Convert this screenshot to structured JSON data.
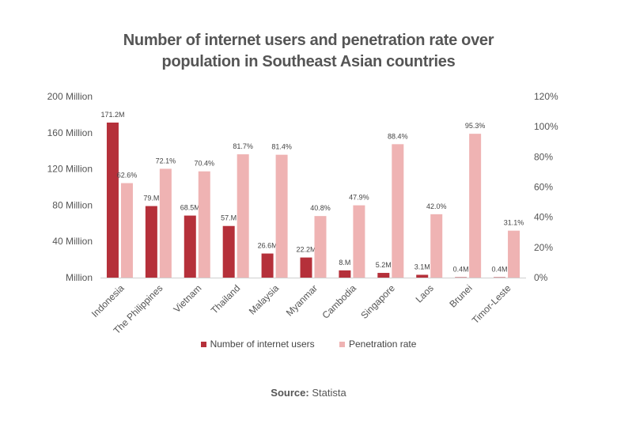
{
  "chart_data": {
    "type": "bar",
    "title": "Number of internet users and penetration rate over population in Southeast Asian countries",
    "categories": [
      "Indonesia",
      "The Philippines",
      "Vietnam",
      "Thailand",
      "Malaysia",
      "Myanmar",
      "Cambodia",
      "Singapore",
      "Laos",
      "Brunei",
      "Timor-Leste"
    ],
    "series": [
      {
        "name": "Number of internet users",
        "axis": "left",
        "color": "#b5303a",
        "values": [
          171.2,
          79.0,
          68.5,
          57.0,
          26.6,
          22.2,
          8.0,
          5.2,
          3.1,
          0.4,
          0.4
        ],
        "labels": [
          "171.2M",
          "79.M",
          "68.5M",
          "57.M",
          "26.6M",
          "22.2M",
          "8.M",
          "5.2M",
          "3.1M",
          "0.4M",
          "0.4M"
        ]
      },
      {
        "name": "Penetration rate",
        "axis": "right",
        "color": "#efb3b3",
        "values": [
          62.6,
          72.1,
          70.4,
          81.7,
          81.4,
          40.8,
          47.9,
          88.4,
          42.0,
          95.3,
          31.1
        ],
        "labels": [
          "62.6%",
          "72.1%",
          "70.4%",
          "81.7%",
          "81.4%",
          "40.8%",
          "47.9%",
          "88.4%",
          "42.0%",
          "95.3%",
          "31.1%"
        ]
      }
    ],
    "left_axis": {
      "ylim": [
        0,
        200
      ],
      "ticks": [
        0,
        40,
        80,
        120,
        160,
        200
      ],
      "tick_labels": [
        "Million",
        "40 Million",
        "80 Million",
        "120 Million",
        "160 Million",
        "200 Million"
      ]
    },
    "right_axis": {
      "ylim": [
        0,
        120
      ],
      "ticks": [
        0,
        20,
        40,
        60,
        80,
        100,
        120
      ],
      "tick_labels": [
        "0%",
        "20%",
        "40%",
        "60%",
        "80%",
        "100%",
        "120%"
      ]
    },
    "grid": false,
    "legend_position": "bottom"
  },
  "title_line1": "Number of internet users and penetration rate over",
  "title_line2": "population in Southeast Asian countries",
  "source": {
    "label": "Source:",
    "value": "Statista"
  }
}
